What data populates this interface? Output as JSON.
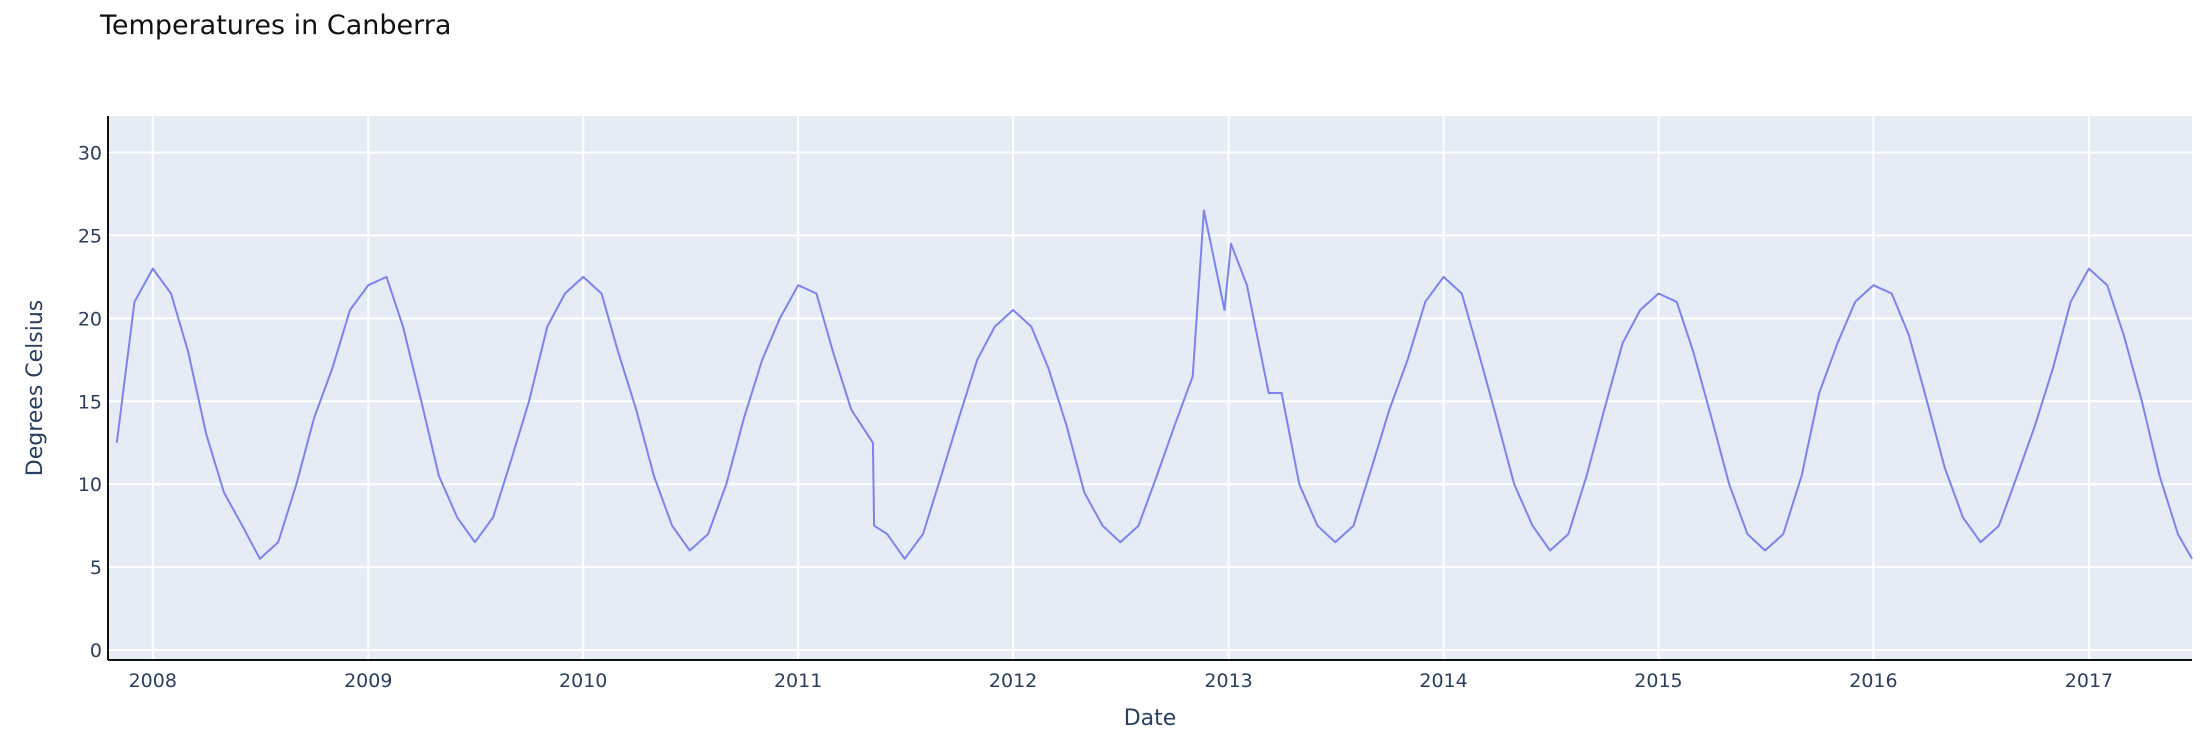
{
  "chart_data": {
    "type": "line",
    "title": "Temperatures in Canberra",
    "xlabel": "Date",
    "ylabel": "Degrees Celsius",
    "x_ticks": [
      "2008",
      "2009",
      "2010",
      "2011",
      "2012",
      "2013",
      "2014",
      "2015",
      "2016",
      "2017"
    ],
    "y_ticks": [
      0,
      5,
      10,
      15,
      20,
      25,
      30
    ],
    "xlim": [
      "2007-10-17",
      "2017-06-25"
    ],
    "ylim": [
      -0.6,
      32.2
    ],
    "grid": true,
    "legend": "none",
    "series": [
      {
        "color": "#7c83f0",
        "points": [
          [
            "2007-11-01",
            12.5
          ],
          [
            "2007-12-01",
            21.0
          ],
          [
            "2008-01-01",
            23.0
          ],
          [
            "2008-02-01",
            21.5
          ],
          [
            "2008-03-01",
            18.0
          ],
          [
            "2008-04-01",
            13.0
          ],
          [
            "2008-05-01",
            9.5
          ],
          [
            "2008-06-01",
            7.5
          ],
          [
            "2008-07-01",
            5.5
          ],
          [
            "2008-08-01",
            6.5
          ],
          [
            "2008-09-01",
            10.0
          ],
          [
            "2008-10-01",
            14.0
          ],
          [
            "2008-11-01",
            17.0
          ],
          [
            "2008-12-01",
            20.5
          ],
          [
            "2009-01-01",
            22.0
          ],
          [
            "2009-02-01",
            22.5
          ],
          [
            "2009-03-01",
            19.5
          ],
          [
            "2009-04-01",
            15.0
          ],
          [
            "2009-05-01",
            10.5
          ],
          [
            "2009-06-01",
            8.0
          ],
          [
            "2009-07-01",
            6.5
          ],
          [
            "2009-08-01",
            8.0
          ],
          [
            "2009-09-01",
            11.5
          ],
          [
            "2009-10-01",
            15.0
          ],
          [
            "2009-11-01",
            19.5
          ],
          [
            "2009-12-01",
            21.5
          ],
          [
            "2010-01-01",
            22.5
          ],
          [
            "2010-02-01",
            21.5
          ],
          [
            "2010-03-01",
            18.0
          ],
          [
            "2010-04-01",
            14.5
          ],
          [
            "2010-05-01",
            10.5
          ],
          [
            "2010-06-01",
            7.5
          ],
          [
            "2010-07-01",
            6.0
          ],
          [
            "2010-08-01",
            7.0
          ],
          [
            "2010-09-01",
            10.0
          ],
          [
            "2010-10-01",
            14.0
          ],
          [
            "2010-11-01",
            17.5
          ],
          [
            "2010-12-01",
            20.0
          ],
          [
            "2011-01-01",
            22.0
          ],
          [
            "2011-02-01",
            21.5
          ],
          [
            "2011-03-01",
            18.0
          ],
          [
            "2011-04-01",
            14.5
          ],
          [
            "2011-05-08",
            12.5
          ],
          [
            "2011-05-10",
            7.5
          ],
          [
            "2011-06-01",
            7.0
          ],
          [
            "2011-07-01",
            5.5
          ],
          [
            "2011-08-01",
            7.0
          ],
          [
            "2011-09-01",
            10.5
          ],
          [
            "2011-10-01",
            14.0
          ],
          [
            "2011-11-01",
            17.5
          ],
          [
            "2011-12-01",
            19.5
          ],
          [
            "2012-01-01",
            20.5
          ],
          [
            "2012-02-01",
            19.5
          ],
          [
            "2012-03-01",
            17.0
          ],
          [
            "2012-04-01",
            13.5
          ],
          [
            "2012-05-01",
            9.5
          ],
          [
            "2012-06-01",
            7.5
          ],
          [
            "2012-07-01",
            6.5
          ],
          [
            "2012-08-01",
            7.5
          ],
          [
            "2012-09-01",
            10.5
          ],
          [
            "2012-10-01",
            13.5
          ],
          [
            "2012-11-01",
            16.5
          ],
          [
            "2012-11-20",
            26.5
          ],
          [
            "2012-12-25",
            20.5
          ],
          [
            "2013-01-05",
            24.5
          ],
          [
            "2013-02-01",
            22.0
          ],
          [
            "2013-03-10",
            15.5
          ],
          [
            "2013-04-01",
            15.5
          ],
          [
            "2013-05-01",
            10.0
          ],
          [
            "2013-06-01",
            7.5
          ],
          [
            "2013-07-01",
            6.5
          ],
          [
            "2013-08-01",
            7.5
          ],
          [
            "2013-09-01",
            11.0
          ],
          [
            "2013-10-01",
            14.5
          ],
          [
            "2013-11-01",
            17.5
          ],
          [
            "2013-12-01",
            21.0
          ],
          [
            "2014-01-01",
            22.5
          ],
          [
            "2014-02-01",
            21.5
          ],
          [
            "2014-03-01",
            18.0
          ],
          [
            "2014-04-01",
            14.0
          ],
          [
            "2014-05-01",
            10.0
          ],
          [
            "2014-06-01",
            7.5
          ],
          [
            "2014-07-01",
            6.0
          ],
          [
            "2014-08-01",
            7.0
          ],
          [
            "2014-09-01",
            10.5
          ],
          [
            "2014-10-01",
            14.5
          ],
          [
            "2014-11-01",
            18.5
          ],
          [
            "2014-12-01",
            20.5
          ],
          [
            "2015-01-01",
            21.5
          ],
          [
            "2015-02-01",
            21.0
          ],
          [
            "2015-03-01",
            18.0
          ],
          [
            "2015-04-01",
            14.0
          ],
          [
            "2015-05-01",
            10.0
          ],
          [
            "2015-06-01",
            7.0
          ],
          [
            "2015-07-01",
            6.0
          ],
          [
            "2015-08-01",
            7.0
          ],
          [
            "2015-09-01",
            10.5
          ],
          [
            "2015-10-01",
            15.5
          ],
          [
            "2015-11-01",
            18.5
          ],
          [
            "2015-12-01",
            21.0
          ],
          [
            "2016-01-01",
            22.0
          ],
          [
            "2016-02-01",
            21.5
          ],
          [
            "2016-03-01",
            19.0
          ],
          [
            "2016-04-01",
            15.0
          ],
          [
            "2016-05-01",
            11.0
          ],
          [
            "2016-06-01",
            8.0
          ],
          [
            "2016-07-01",
            6.5
          ],
          [
            "2016-08-01",
            7.5
          ],
          [
            "2016-09-01",
            10.5
          ],
          [
            "2016-10-01",
            13.5
          ],
          [
            "2016-11-01",
            17.0
          ],
          [
            "2016-12-01",
            21.0
          ],
          [
            "2017-01-01",
            23.0
          ],
          [
            "2017-02-01",
            22.0
          ],
          [
            "2017-03-01",
            19.0
          ],
          [
            "2017-04-01",
            15.0
          ],
          [
            "2017-05-01",
            10.5
          ],
          [
            "2017-06-01",
            7.0
          ],
          [
            "2017-06-25",
            5.5
          ]
        ]
      }
    ]
  }
}
